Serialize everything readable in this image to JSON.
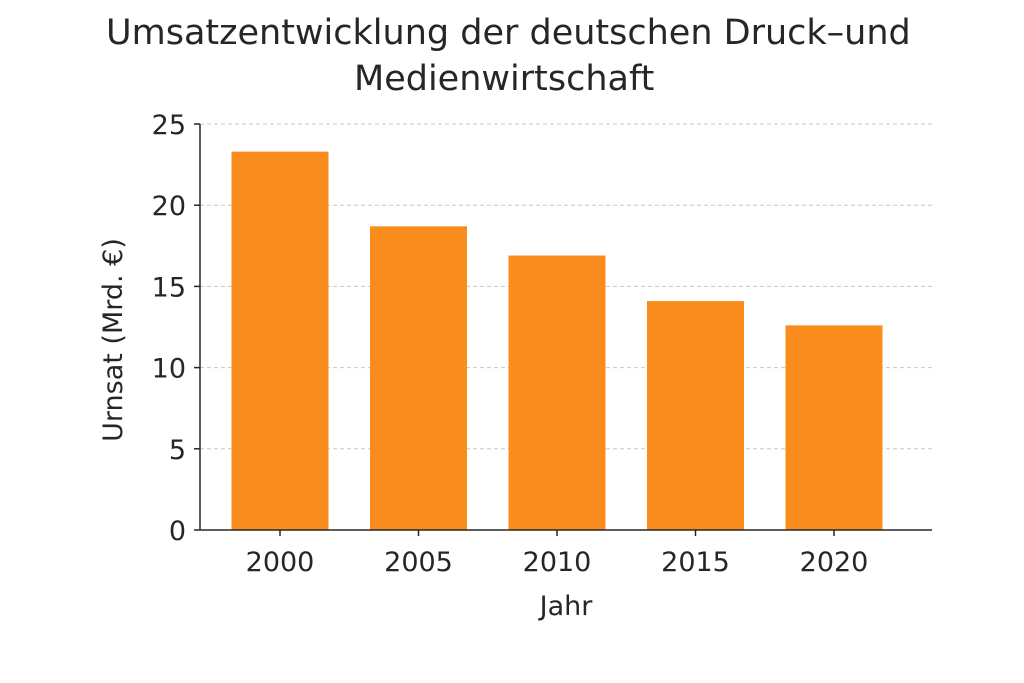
{
  "chart_data": {
    "type": "bar",
    "title_lines": [
      "Umsatzentwicklung der deutschen Druck–und",
      "Medienwirtschaft"
    ],
    "xlabel": "Jahr",
    "ylabel": "Urnsat (Mrd. €)",
    "categories": [
      "2000",
      "2005",
      "2010",
      "2015",
      "2020"
    ],
    "values": [
      23.3,
      18.7,
      16.9,
      14.1,
      12.6
    ],
    "ylim": [
      0,
      25
    ],
    "yticks": [
      "0",
      "5",
      "10",
      "15",
      "20",
      "25"
    ],
    "ytick_values": [
      0,
      5,
      10,
      15,
      20,
      25
    ],
    "grid": true,
    "bar_color": "#FA8C1E"
  }
}
